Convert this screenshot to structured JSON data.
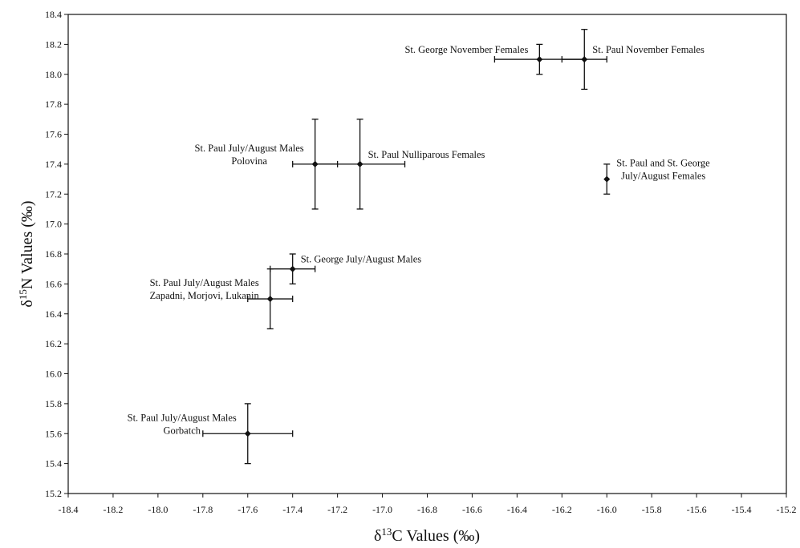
{
  "chart_data": {
    "type": "scatter",
    "title": "",
    "xlabel": {
      "prefix": "δ",
      "sup": "13",
      "suffix": "C Values (‰)"
    },
    "ylabel": {
      "prefix": "δ",
      "sup": "15",
      "suffix": "N Values (‰)"
    },
    "xlim": [
      -18.4,
      -15.2
    ],
    "ylim": [
      15.2,
      18.4
    ],
    "x_ticks": [
      "-18.4",
      "-18.2",
      "-18.0",
      "-17.8",
      "-17.6",
      "-17.4",
      "-17.2",
      "-17.0",
      "-16.8",
      "-16.6",
      "-16.4",
      "-16.2",
      "-16.0",
      "-15.8",
      "-15.6",
      "-15.4",
      "-15.2"
    ],
    "y_ticks": [
      "15.2",
      "15.4",
      "15.6",
      "15.8",
      "16.0",
      "16.2",
      "16.4",
      "16.6",
      "16.8",
      "17.0",
      "17.2",
      "17.4",
      "17.6",
      "17.8",
      "18.0",
      "18.2",
      "18.4"
    ],
    "grid": false,
    "points": [
      {
        "x": -16.3,
        "y": 18.1,
        "xerr": 0.2,
        "yerr": 0.1,
        "label": [
          "St. George November Females"
        ],
        "anchor": "end"
      },
      {
        "x": -16.1,
        "y": 18.1,
        "xerr": 0.1,
        "yerr": 0.2,
        "label": [
          "St. Paul November Females"
        ],
        "anchor": "start"
      },
      {
        "x": -17.3,
        "y": 17.4,
        "xerr": 0.1,
        "yerr": 0.3,
        "label": [
          "St. Paul July/August Males",
          "Polovina"
        ],
        "anchor": "end"
      },
      {
        "x": -17.1,
        "y": 17.4,
        "xerr": 0.2,
        "yerr": 0.3,
        "label": [
          "St. Paul Nulliparous Females"
        ],
        "anchor": "start"
      },
      {
        "x": -16.0,
        "y": 17.3,
        "xerr": 0,
        "yerr": 0.1,
        "label": [
          "St. Paul and St. George",
          "July/August Females"
        ],
        "anchor": "start"
      },
      {
        "x": -17.4,
        "y": 16.7,
        "xerr": 0.1,
        "yerr": 0.1,
        "label": [
          "St. George July/August Males"
        ],
        "anchor": "start"
      },
      {
        "x": -17.5,
        "y": 16.5,
        "xerr": 0.1,
        "yerr": 0.2,
        "label": [
          "St. Paul July/August Males",
          "Zapadni, Morjovi, Lukanin"
        ],
        "anchor": "end"
      },
      {
        "x": -17.6,
        "y": 15.6,
        "xerr": 0.2,
        "yerr": 0.2,
        "label": [
          "St. Paul July/August Males",
          "Gorbatch"
        ],
        "anchor": "end"
      }
    ]
  }
}
